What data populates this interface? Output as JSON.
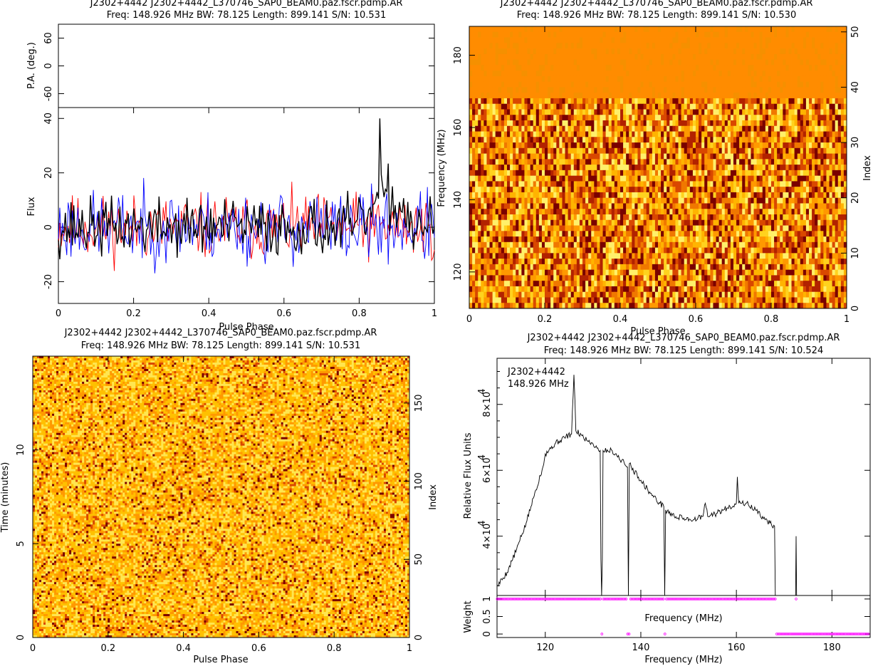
{
  "chart_data": [
    {
      "id": "stokes",
      "type": "line",
      "title": "J2302+4442 J2302+4442_L370746_SAP0_BEAM0.paz.fscr.pdmp.AR",
      "subtitle": "Freq: 148.926 MHz BW: 78.125 Length: 899.141 S/N: 10.531",
      "xlabel": "Pulse Phase",
      "xlim": [
        0,
        1
      ],
      "xticks": [
        "0",
        "0.2",
        "0.4",
        "0.6",
        "0.8",
        "1"
      ],
      "pa_panel": {
        "ylabel": "P.A. (deg.)",
        "ylim": [
          -90,
          90
        ],
        "yticks": [
          "60",
          "0",
          "-60"
        ],
        "points": []
      },
      "flux_panel": {
        "ylabel": "Flux",
        "ylim": [
          -28,
          44
        ],
        "yticks": [
          "40",
          "20",
          "0",
          "-20"
        ],
        "series_colors": [
          "#ff0000",
          "#0000ff",
          "#000000"
        ],
        "peak": {
          "x": 0.855,
          "y": 40
        }
      },
      "grid": false
    },
    {
      "id": "freq_phase",
      "type": "heatmap",
      "title": "J2302+4442 J2302+4442_L370746_SAP0_BEAM0.paz.fscr.pdmp.AR",
      "subtitle": "Freq: 148.926 MHz BW: 78.125 Length: 899.141 S/N: 10.530",
      "xlabel": "Pulse Phase",
      "ylabel": "Frequency (MHz)",
      "ylabel_right": "Index",
      "xlim": [
        0,
        1
      ],
      "ylim": [
        109.9,
        188.0
      ],
      "right_ylim": [
        0,
        51
      ],
      "xticks": [
        "0",
        "0.2",
        "0.4",
        "0.6",
        "0.8",
        "1"
      ],
      "yticks": [
        "120",
        "140",
        "160",
        "180"
      ],
      "right_yticks": [
        "0",
        "10",
        "20",
        "30",
        "40",
        "50"
      ],
      "colormap": [
        "#8b0000",
        "#ff8c00",
        "#ffd700",
        "#ffff99"
      ]
    },
    {
      "id": "time_phase",
      "type": "heatmap",
      "title": "J2302+4442 J2302+4442_L370746_SAP0_BEAM0.paz.fscr.pdmp.AR",
      "subtitle": "Freq: 148.926 MHz BW: 78.125 Length: 899.141 S/N: 10.531",
      "xlabel": "Pulse Phase",
      "ylabel": "Time (minutes)",
      "ylabel_right": "Index",
      "xlim": [
        0,
        1
      ],
      "ylim": [
        0,
        15
      ],
      "right_ylim": [
        0,
        180
      ],
      "xticks": [
        "0",
        "0.2",
        "0.4",
        "0.6",
        "0.8",
        "1"
      ],
      "yticks": [
        "0",
        "5",
        "10"
      ],
      "right_yticks": [
        "0",
        "50",
        "100",
        "150"
      ],
      "colormap": [
        "#8b0000",
        "#ff8c00",
        "#ffd700",
        "#ffff99"
      ]
    },
    {
      "id": "bandpass",
      "type": "line",
      "title": "J2302+4442 J2302+4442_L370746_SAP0_BEAM0.paz.fscr.pdmp.AR",
      "subtitle": "Freq: 148.926 MHz BW: 78.125 Length: 899.141 S/N: 10.524",
      "annotation": [
        "J2302+4442",
        "148.926 MHz"
      ],
      "xlabel": "Frequency (MHz)",
      "ylabel": "Relative Flux Units",
      "xlim": [
        109.9,
        188.0
      ],
      "ylim": [
        22000,
        94000
      ],
      "xticks": [
        "120",
        "140",
        "160",
        "180"
      ],
      "yticks": [
        "4×10",
        "6×10",
        "8×10"
      ],
      "ytick_values": [
        40000,
        60000,
        80000
      ],
      "ytick_exponent": "4",
      "points": [
        [
          110,
          25000
        ],
        [
          112,
          29000
        ],
        [
          114,
          36000
        ],
        [
          116,
          44000
        ],
        [
          118,
          54000
        ],
        [
          119.5,
          61000
        ],
        [
          120,
          65000
        ],
        [
          122,
          68000
        ],
        [
          124,
          70000
        ],
        [
          125.5,
          71000
        ],
        [
          126,
          89000
        ],
        [
          126.4,
          72000
        ],
        [
          128,
          70000
        ],
        [
          130,
          68000
        ],
        [
          131.5,
          66000
        ],
        [
          131.8,
          0
        ],
        [
          132.1,
          66000
        ],
        [
          134,
          66000
        ],
        [
          136,
          63000
        ],
        [
          137.2,
          61000
        ],
        [
          137.4,
          0
        ],
        [
          137.6,
          62000
        ],
        [
          138,
          61000
        ],
        [
          140,
          57000
        ],
        [
          142,
          53000
        ],
        [
          144,
          50000
        ],
        [
          144.8,
          49000
        ],
        [
          145.0,
          0
        ],
        [
          145.2,
          48000
        ],
        [
          147,
          46000
        ],
        [
          149,
          45500
        ],
        [
          151,
          45000
        ],
        [
          153,
          46000
        ],
        [
          153.5,
          50000
        ],
        [
          154,
          46000
        ],
        [
          156,
          47000
        ],
        [
          158,
          48500
        ],
        [
          160,
          50000
        ],
        [
          160.2,
          58000
        ],
        [
          160.5,
          50000
        ],
        [
          162,
          50000
        ],
        [
          164,
          48000
        ],
        [
          166,
          45000
        ],
        [
          168,
          43000
        ],
        [
          168.3,
          0
        ],
        [
          172.4,
          0
        ],
        [
          172.5,
          40000
        ],
        [
          172.6,
          0
        ]
      ],
      "weight_panel": {
        "ylabel": "Weight",
        "ylim": [
          -0.1,
          1.1
        ],
        "yticks": [
          "0",
          "0.5",
          "1"
        ],
        "xlabel": "Frequency (MHz)",
        "color": "#ff00ff",
        "zero_at": [
          131.8,
          137.4,
          145.0
        ],
        "zero_range": [
          168.4,
          188.0
        ]
      },
      "grid": false
    }
  ]
}
